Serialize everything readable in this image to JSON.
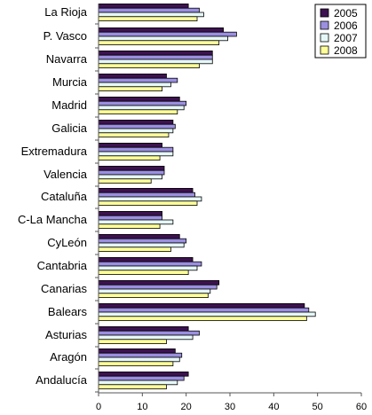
{
  "chart_data": {
    "type": "bar",
    "orientation": "horizontal",
    "categories": [
      "La Rioja",
      "P. Vasco",
      "Navarra",
      "Murcia",
      "Madrid",
      "Galicia",
      "Extremadura",
      "Valencia",
      "Cataluña",
      "C-La Mancha",
      "CyLeón",
      "Cantabria",
      "Canarias",
      "Balears",
      "Asturias",
      "Aragón",
      "Andalucía"
    ],
    "series": [
      {
        "name": "2005",
        "color": "#3d1250",
        "values": [
          20.5,
          28.5,
          26,
          15.5,
          18.5,
          17,
          14.5,
          15,
          21.5,
          14.5,
          18.5,
          21.5,
          27.5,
          47,
          20.5,
          17.5,
          20.5
        ]
      },
      {
        "name": "2006",
        "color": "#9b8fe0",
        "values": [
          23,
          31.5,
          26,
          18,
          20,
          17.5,
          17,
          15,
          22,
          14.5,
          20,
          23.5,
          27,
          48,
          23,
          19,
          19.5
        ]
      },
      {
        "name": "2007",
        "color": "#e6f7f7",
        "values": [
          24,
          29.5,
          26,
          16.5,
          19.5,
          17,
          17,
          14.5,
          23.5,
          17,
          19.5,
          22.5,
          25.5,
          49.5,
          21.5,
          18.5,
          18
        ]
      },
      {
        "name": "2008",
        "color": "#ffff99",
        "values": [
          22.5,
          27.5,
          23,
          14.5,
          18,
          16,
          14,
          12,
          22.5,
          14,
          16.5,
          20.5,
          25,
          47.5,
          15.5,
          17,
          15.5
        ]
      }
    ],
    "xlim": [
      0,
      60
    ],
    "xticks": [
      0,
      10,
      20,
      30,
      40,
      50,
      60
    ],
    "grid": false,
    "legend_position": "top-right"
  }
}
